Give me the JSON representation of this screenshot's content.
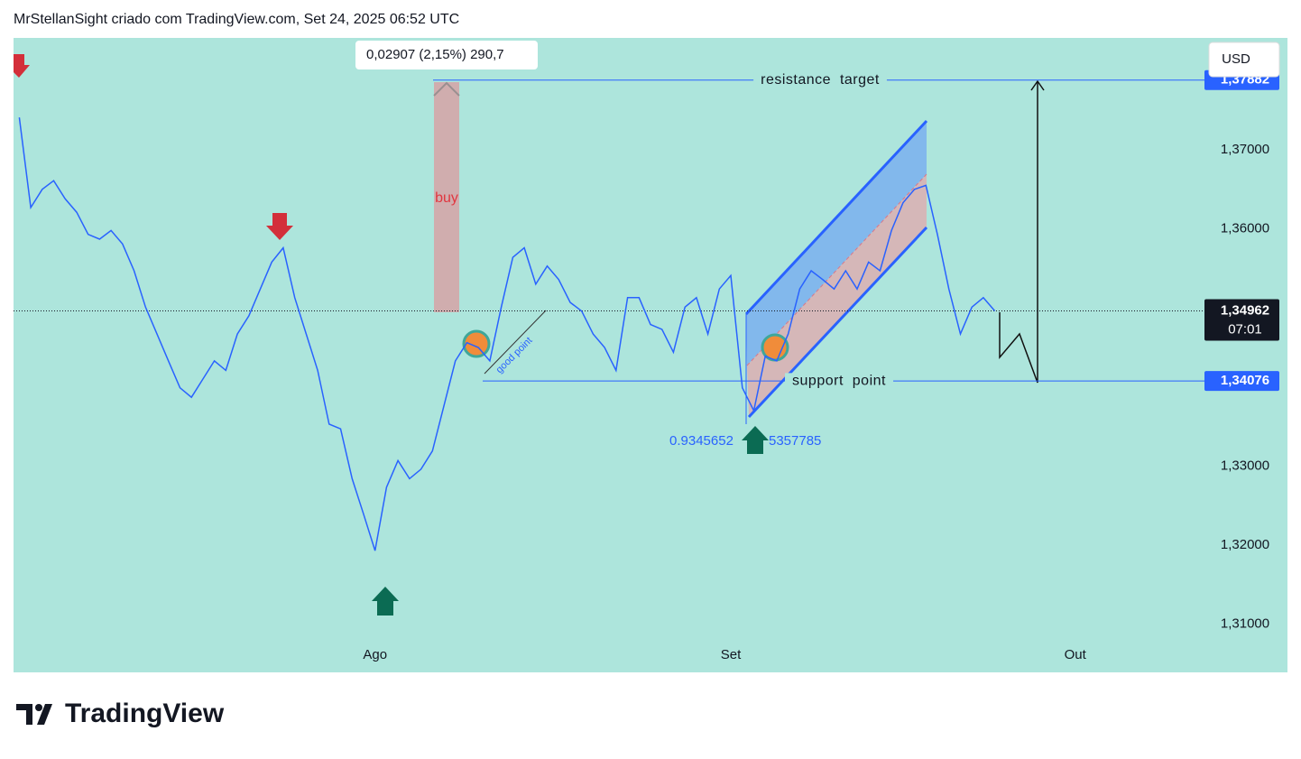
{
  "header": {
    "text": "MrStellanSight criado com TradingView.com, Set 24, 2025 06:52 UTC"
  },
  "chart_data": {
    "type": "line",
    "color": "#2962ff",
    "background": "#ade5dc",
    "categories": [
      null,
      null,
      null,
      null,
      null,
      null,
      null,
      null,
      null,
      null,
      null,
      null,
      null,
      null,
      null,
      null,
      null,
      null,
      null,
      null,
      null,
      null,
      null,
      null,
      null,
      null,
      null,
      null,
      null,
      null,
      null,
      "Ago",
      null,
      null,
      null,
      null,
      null,
      null,
      null,
      null,
      null,
      null,
      null,
      null,
      null,
      null,
      null,
      null,
      null,
      null,
      null,
      null,
      null,
      null,
      null,
      null,
      null,
      null,
      null,
      null,
      null,
      null,
      "Set",
      null,
      null,
      null,
      null,
      null,
      null,
      null,
      null,
      null,
      null,
      null,
      null,
      null,
      null,
      null,
      null,
      null,
      null,
      null,
      null,
      null,
      null,
      null,
      null,
      null,
      null,
      null,
      null,
      null,
      "Out",
      null,
      null,
      null,
      null,
      null,
      null,
      null,
      null,
      null,
      null,
      null,
      null,
      null,
      null,
      null,
      null,
      null,
      null
    ],
    "values": [
      1.3741,
      1.3627,
      1.365,
      1.3661,
      1.3638,
      1.3621,
      1.3593,
      1.3587,
      1.3598,
      1.3581,
      1.3547,
      1.3501,
      1.3467,
      1.3433,
      1.3399,
      1.3387,
      1.341,
      1.3433,
      1.3421,
      1.3467,
      1.349,
      1.3524,
      1.3558,
      1.3576,
      1.3513,
      1.3467,
      1.3421,
      1.3353,
      1.3347,
      1.3284,
      1.3239,
      1.3193,
      1.3273,
      1.3307,
      1.3284,
      1.3296,
      1.3319,
      1.3376,
      1.3433,
      1.3456,
      1.345,
      1.3433,
      1.3501,
      1.3564,
      1.3576,
      1.353,
      1.3553,
      1.3536,
      1.3507,
      1.3496,
      1.3467,
      1.345,
      1.3421,
      1.3513,
      1.3513,
      1.3479,
      1.3473,
      1.3444,
      1.3501,
      1.3513,
      1.3467,
      1.3524,
      1.3541,
      1.3399,
      1.337,
      1.3439,
      1.3433,
      1.3467,
      1.3524,
      1.3547,
      1.3536,
      1.3524,
      1.3547,
      1.3524,
      1.3558,
      1.3547,
      1.3598,
      1.3633,
      1.365,
      1.3655,
      1.3593,
      1.3524,
      1.3467,
      1.3501,
      1.3513,
      1.34962,
      null,
      null,
      null,
      null,
      null,
      null,
      null,
      null,
      null,
      null,
      null,
      null,
      null,
      null,
      null,
      null,
      null,
      null,
      null,
      null,
      null,
      null,
      null,
      null,
      null
    ],
    "ylim": [
      1.3039,
      1.38416
    ],
    "yticks": [
      {
        "value": 1.37,
        "label": "1,37000"
      },
      {
        "value": 1.36,
        "label": "1,36000"
      },
      {
        "value": 1.33,
        "label": "1,33000"
      },
      {
        "value": 1.32,
        "label": "1,32000"
      },
      {
        "value": 1.31,
        "label": "1,31000"
      }
    ],
    "currency": "USD",
    "levels": [
      {
        "name": "resistance  target",
        "value": 1.37882,
        "label": "1,37882"
      },
      {
        "name": "support  point",
        "value": 1.34076,
        "label": "1,34076"
      }
    ],
    "last_price": {
      "value": 1.34962,
      "label": "1,34962",
      "countdown": "07:01"
    },
    "measure": "0,02907 (2,15%) 290,7",
    "annotations": {
      "buy": "buy",
      "good_point": "good  point",
      "left_number": "0.9345652",
      "right_number": "5357785"
    }
  },
  "footer": {
    "logo": "TradingView"
  }
}
